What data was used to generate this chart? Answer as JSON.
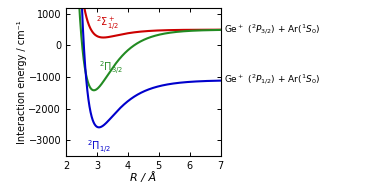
{
  "xlim": [
    2.0,
    7.0
  ],
  "ylim": [
    -3500,
    1200
  ],
  "xlabel": "R / Å",
  "ylabel": "Interaction energy / cm⁻¹",
  "xticks": [
    2,
    3,
    4,
    5,
    6,
    7
  ],
  "yticks": [
    -3000,
    -2000,
    -1000,
    0,
    1000
  ],
  "colors": {
    "sigma": "#cc0000",
    "pi32": "#228B22",
    "pi12": "#0000cc"
  },
  "label_sigma": "$^2\\Sigma_{1/2}^+$",
  "label_pi32": "$^2\\Pi_{3/2}$",
  "label_pi12": "$^2\\Pi_{1/2}$",
  "annotation_upper": "Ge$^+$ ($^2P_{3/2}$) + Ar($^1S_0$)",
  "annotation_lower": "Ge$^+$ ($^2P_{1/2}$) + Ar($^1S_0$)"
}
